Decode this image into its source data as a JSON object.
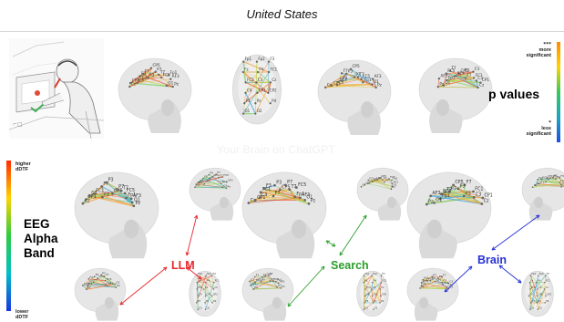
{
  "header": {
    "title": "United States"
  },
  "watermark": "Your Brain on ChatGPT",
  "pvalue_legend": {
    "title": "p values",
    "more_stars": "***",
    "more_label": "more significant",
    "less_stars": "*",
    "less_label": "less significant",
    "gradient": [
      "#ff8a00",
      "#ffd400",
      "#38c95a",
      "#1aa6c4",
      "#1f4fe0"
    ]
  },
  "dtf_legend": {
    "higher_label": "higher dDTF",
    "lower_label": "lower dDTF",
    "band_lines": [
      "EEG",
      "Alpha",
      "Band"
    ],
    "gradient": [
      "#ff2a00",
      "#ffd400",
      "#2ecc40",
      "#00c0c8",
      "#1a33e0"
    ]
  },
  "groups": [
    {
      "name": "LLM",
      "color": "#e8262d"
    },
    {
      "name": "Search",
      "color": "#2a9d2a"
    },
    {
      "name": "Brain",
      "color": "#2430d6"
    }
  ],
  "electrodes": {
    "side": [
      "Cz",
      "CP1",
      "C3",
      "FC1",
      "F3",
      "F7",
      "P3",
      "CP5",
      "P7",
      "T7",
      "FC5",
      "Fp1",
      "AF3",
      "O1",
      "Pz"
    ],
    "top": [
      "Fp1",
      "Fp2",
      "F3",
      "Fz",
      "F4",
      "FC1",
      "FC2",
      "C3",
      "Cz",
      "C4",
      "CP1",
      "CP2",
      "P3",
      "Pz",
      "P4",
      "O1",
      "O2"
    ]
  }
}
